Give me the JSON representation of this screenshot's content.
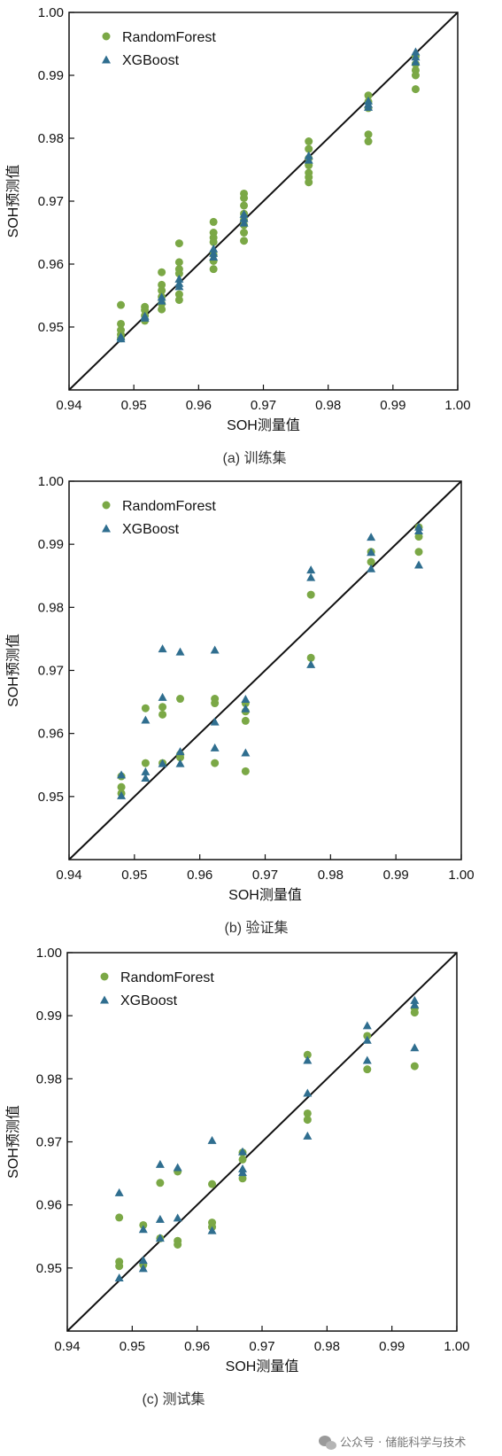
{
  "colors": {
    "random_forest": "#7ba846",
    "xgboost": "#2f6e8f",
    "ideal_line": "#111111",
    "axes": "#111111"
  },
  "watermark": {
    "icon": "wechat-icon",
    "text": "公众号 · 储能科学与技术"
  },
  "chart_data": [
    {
      "type": "scatter",
      "caption": "(a) 训练集",
      "xlabel": "SOH测量值",
      "ylabel": "SOH预测值",
      "xlim": [
        0.94,
        1.0
      ],
      "ylim": [
        0.94,
        1.0
      ],
      "xticks": [
        "0.94",
        "0.95",
        "0.96",
        "0.97",
        "0.98",
        "0.99",
        "1.00"
      ],
      "yticks": [
        "0.95",
        "0.96",
        "0.97",
        "0.98",
        "0.99",
        "1.00"
      ],
      "legend_position": "top-left",
      "grid": false,
      "reference_line": "y = x",
      "series": [
        {
          "name": "RandomForest",
          "marker": "circle",
          "points": [
            [
              0.948,
              0.9535
            ],
            [
              0.948,
              0.9505
            ],
            [
              0.948,
              0.9495
            ],
            [
              0.948,
              0.9488
            ],
            [
              0.948,
              0.9482
            ],
            [
              0.9517,
              0.9532
            ],
            [
              0.9517,
              0.9527
            ],
            [
              0.9517,
              0.9518
            ],
            [
              0.9517,
              0.951
            ],
            [
              0.9543,
              0.9587
            ],
            [
              0.9543,
              0.9567
            ],
            [
              0.9543,
              0.9558
            ],
            [
              0.9543,
              0.9548
            ],
            [
              0.9543,
              0.9537
            ],
            [
              0.9543,
              0.9528
            ],
            [
              0.957,
              0.9633
            ],
            [
              0.957,
              0.9603
            ],
            [
              0.957,
              0.9592
            ],
            [
              0.957,
              0.9585
            ],
            [
              0.957,
              0.9552
            ],
            [
              0.957,
              0.9543
            ],
            [
              0.9623,
              0.9667
            ],
            [
              0.9623,
              0.965
            ],
            [
              0.9623,
              0.9642
            ],
            [
              0.9623,
              0.9635
            ],
            [
              0.9623,
              0.9615
            ],
            [
              0.9623,
              0.9605
            ],
            [
              0.9623,
              0.9592
            ],
            [
              0.967,
              0.9712
            ],
            [
              0.967,
              0.9705
            ],
            [
              0.967,
              0.9693
            ],
            [
              0.967,
              0.968
            ],
            [
              0.967,
              0.967
            ],
            [
              0.967,
              0.9662
            ],
            [
              0.967,
              0.965
            ],
            [
              0.967,
              0.9637
            ],
            [
              0.977,
              0.9795
            ],
            [
              0.977,
              0.9783
            ],
            [
              0.977,
              0.9768
            ],
            [
              0.977,
              0.9757
            ],
            [
              0.977,
              0.9745
            ],
            [
              0.977,
              0.9738
            ],
            [
              0.977,
              0.973
            ],
            [
              0.9862,
              0.9868
            ],
            [
              0.9862,
              0.9858
            ],
            [
              0.9862,
              0.9848
            ],
            [
              0.9862,
              0.9806
            ],
            [
              0.9862,
              0.9795
            ],
            [
              0.9935,
              0.993
            ],
            [
              0.9935,
              0.9918
            ],
            [
              0.9935,
              0.9908
            ],
            [
              0.9935,
              0.99
            ],
            [
              0.9935,
              0.9878
            ]
          ]
        },
        {
          "name": "XGBoost",
          "marker": "triangle",
          "points": [
            [
              0.948,
              0.9485
            ],
            [
              0.948,
              0.9482
            ],
            [
              0.9517,
              0.9518
            ],
            [
              0.9517,
              0.9515
            ],
            [
              0.9543,
              0.9548
            ],
            [
              0.9543,
              0.9542
            ],
            [
              0.957,
              0.9577
            ],
            [
              0.957,
              0.957
            ],
            [
              0.957,
              0.9565
            ],
            [
              0.9623,
              0.9625
            ],
            [
              0.9623,
              0.9618
            ],
            [
              0.9623,
              0.9612
            ],
            [
              0.967,
              0.968
            ],
            [
              0.967,
              0.9673
            ],
            [
              0.967,
              0.9666
            ],
            [
              0.977,
              0.9773
            ],
            [
              0.977,
              0.9766
            ],
            [
              0.9862,
              0.986
            ],
            [
              0.9862,
              0.9855
            ],
            [
              0.9862,
              0.985
            ],
            [
              0.9935,
              0.9938
            ],
            [
              0.9935,
              0.993
            ],
            [
              0.9935,
              0.9922
            ]
          ]
        }
      ]
    },
    {
      "type": "scatter",
      "caption": "(b) 验证集",
      "xlabel": "SOH测量值",
      "ylabel": "SOH预测值",
      "xlim": [
        0.94,
        1.0
      ],
      "ylim": [
        0.94,
        1.0
      ],
      "xticks": [
        "0.94",
        "0.95",
        "0.96",
        "0.97",
        "0.98",
        "0.99",
        "1.00"
      ],
      "yticks": [
        "0.95",
        "0.96",
        "0.97",
        "0.98",
        "0.99",
        "1.00"
      ],
      "legend_position": "top-left",
      "grid": false,
      "reference_line": "y = x",
      "series": [
        {
          "name": "RandomForest",
          "marker": "circle",
          "points": [
            [
              0.948,
              0.9532
            ],
            [
              0.948,
              0.9515
            ],
            [
              0.948,
              0.9505
            ],
            [
              0.9517,
              0.964
            ],
            [
              0.9517,
              0.9553
            ],
            [
              0.9543,
              0.9642
            ],
            [
              0.9543,
              0.963
            ],
            [
              0.9543,
              0.9553
            ],
            [
              0.957,
              0.9655
            ],
            [
              0.957,
              0.9567
            ],
            [
              0.957,
              0.9562
            ],
            [
              0.9623,
              0.9655
            ],
            [
              0.9623,
              0.9648
            ],
            [
              0.9623,
              0.9553
            ],
            [
              0.967,
              0.9648
            ],
            [
              0.967,
              0.9635
            ],
            [
              0.967,
              0.962
            ],
            [
              0.967,
              0.954
            ],
            [
              0.977,
              0.982
            ],
            [
              0.977,
              0.972
            ],
            [
              0.9862,
              0.9888
            ],
            [
              0.9862,
              0.9872
            ],
            [
              0.9935,
              0.9927
            ],
            [
              0.9935,
              0.9912
            ],
            [
              0.9935,
              0.9888
            ]
          ]
        },
        {
          "name": "XGBoost",
          "marker": "triangle",
          "points": [
            [
              0.948,
              0.9535
            ],
            [
              0.948,
              0.9502
            ],
            [
              0.9517,
              0.9622
            ],
            [
              0.9517,
              0.954
            ],
            [
              0.9517,
              0.953
            ],
            [
              0.9543,
              0.9735
            ],
            [
              0.9543,
              0.9658
            ],
            [
              0.9543,
              0.9553
            ],
            [
              0.957,
              0.973
            ],
            [
              0.957,
              0.9572
            ],
            [
              0.957,
              0.9553
            ],
            [
              0.9623,
              0.9733
            ],
            [
              0.9623,
              0.9619
            ],
            [
              0.9623,
              0.9578
            ],
            [
              0.967,
              0.9655
            ],
            [
              0.967,
              0.964
            ],
            [
              0.967,
              0.957
            ],
            [
              0.977,
              0.986
            ],
            [
              0.977,
              0.9848
            ],
            [
              0.977,
              0.971
            ],
            [
              0.9862,
              0.9912
            ],
            [
              0.9862,
              0.9888
            ],
            [
              0.9862,
              0.9862
            ],
            [
              0.9935,
              0.9928
            ],
            [
              0.9935,
              0.9922
            ],
            [
              0.9935,
              0.9868
            ]
          ]
        }
      ]
    },
    {
      "type": "scatter",
      "caption": "(c) 测试集",
      "xlabel": "SOH测量值",
      "ylabel": "SOH预测值",
      "xlim": [
        0.94,
        1.0
      ],
      "ylim": [
        0.94,
        1.0
      ],
      "xticks": [
        "0.94",
        "0.95",
        "0.96",
        "0.97",
        "0.98",
        "0.99",
        "1.00"
      ],
      "yticks": [
        "0.95",
        "0.96",
        "0.97",
        "0.98",
        "0.99",
        "1.00"
      ],
      "legend_position": "top-left",
      "grid": false,
      "reference_line": "y = x",
      "series": [
        {
          "name": "RandomForest",
          "marker": "circle",
          "points": [
            [
              0.948,
              0.958
            ],
            [
              0.948,
              0.951
            ],
            [
              0.948,
              0.9503
            ],
            [
              0.9517,
              0.9568
            ],
            [
              0.9517,
              0.9505
            ],
            [
              0.9543,
              0.9635
            ],
            [
              0.9543,
              0.9547
            ],
            [
              0.957,
              0.9653
            ],
            [
              0.957,
              0.9543
            ],
            [
              0.957,
              0.9537
            ],
            [
              0.9623,
              0.9633
            ],
            [
              0.9623,
              0.9572
            ],
            [
              0.9623,
              0.9565
            ],
            [
              0.967,
              0.9683
            ],
            [
              0.967,
              0.9672
            ],
            [
              0.967,
              0.9642
            ],
            [
              0.977,
              0.9838
            ],
            [
              0.977,
              0.9745
            ],
            [
              0.977,
              0.9735
            ],
            [
              0.9862,
              0.9868
            ],
            [
              0.9862,
              0.9815
            ],
            [
              0.9935,
              0.9912
            ],
            [
              0.9935,
              0.9905
            ],
            [
              0.9935,
              0.982
            ]
          ]
        },
        {
          "name": "XGBoost",
          "marker": "triangle",
          "points": [
            [
              0.948,
              0.962
            ],
            [
              0.948,
              0.9485
            ],
            [
              0.9517,
              0.9562
            ],
            [
              0.9517,
              0.9513
            ],
            [
              0.9517,
              0.95
            ],
            [
              0.9543,
              0.9665
            ],
            [
              0.9543,
              0.9578
            ],
            [
              0.9543,
              0.9548
            ],
            [
              0.957,
              0.966
            ],
            [
              0.957,
              0.958
            ],
            [
              0.9623,
              0.9703
            ],
            [
              0.9623,
              0.956
            ],
            [
              0.967,
              0.9685
            ],
            [
              0.967,
              0.9658
            ],
            [
              0.967,
              0.9652
            ],
            [
              0.977,
              0.9778
            ],
            [
              0.977,
              0.983
            ],
            [
              0.977,
              0.971
            ],
            [
              0.9862,
              0.9885
            ],
            [
              0.9862,
              0.9862
            ],
            [
              0.9862,
              0.983
            ],
            [
              0.9935,
              0.9925
            ],
            [
              0.9935,
              0.9918
            ],
            [
              0.9935,
              0.985
            ]
          ]
        }
      ]
    }
  ]
}
